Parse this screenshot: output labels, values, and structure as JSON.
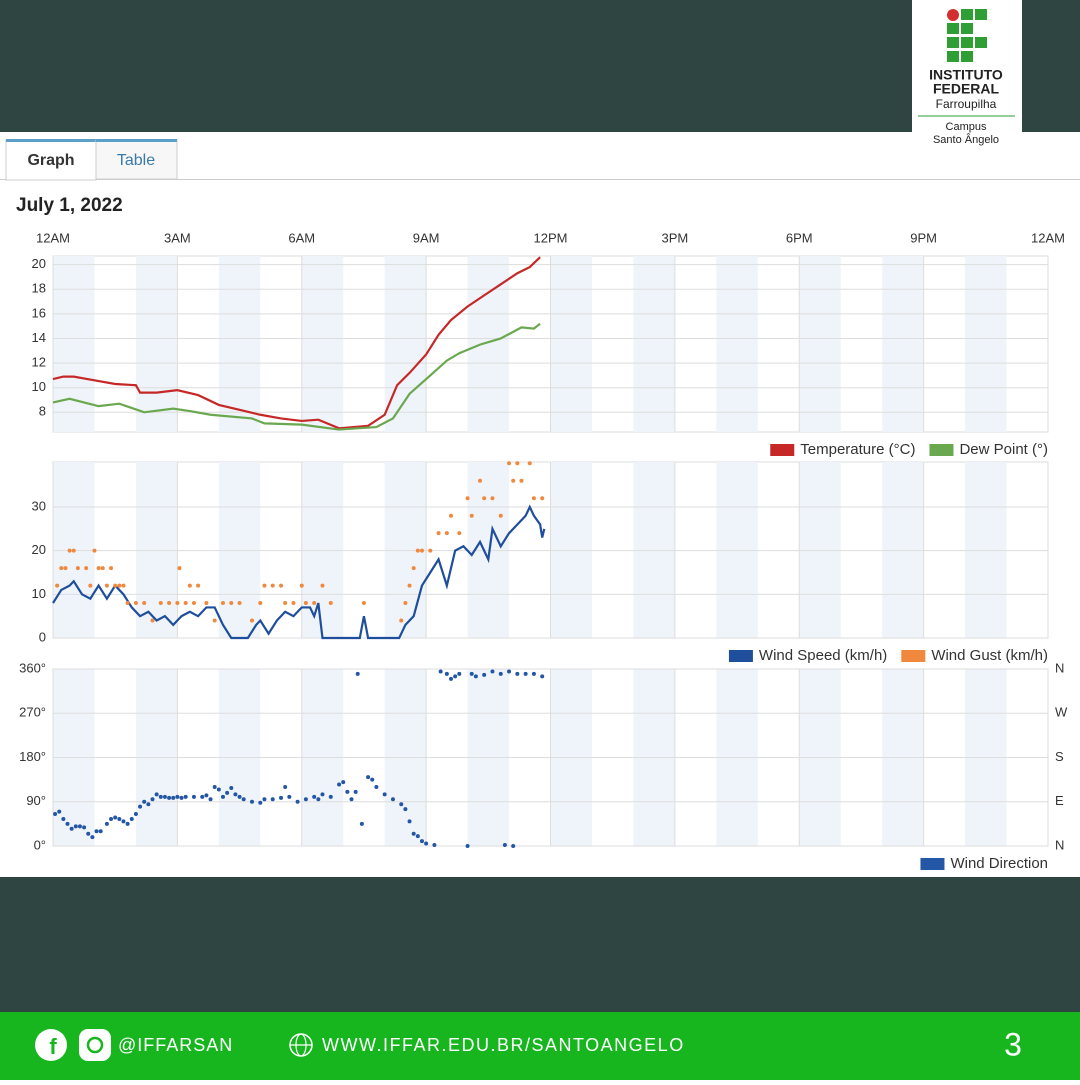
{
  "logo": {
    "line1": "INSTITUTO",
    "line2": "FEDERAL",
    "line3": "Farroupilha",
    "line4": "Campus",
    "line5": "Santo Ângelo"
  },
  "tabs": [
    "Graph",
    "Table"
  ],
  "date": "July 1, 2022",
  "chart_data": [
    {
      "type": "line",
      "xlim": [
        0,
        24
      ],
      "xticks": [
        {
          "value": 0,
          "label": "12AM"
        },
        {
          "value": 3,
          "label": "3AM"
        },
        {
          "value": 6,
          "label": "6AM"
        },
        {
          "value": 9,
          "label": "9AM"
        },
        {
          "value": 12,
          "label": "12PM"
        },
        {
          "value": 15,
          "label": "3PM"
        },
        {
          "value": 18,
          "label": "6PM"
        },
        {
          "value": 21,
          "label": "9PM"
        },
        {
          "value": 24,
          "label": "12AM"
        }
      ],
      "ylim": [
        6.4,
        20.7
      ],
      "yticks": [
        8,
        10,
        12,
        14,
        16,
        18,
        20
      ],
      "grid": true,
      "series": [
        {
          "name": "Temperature (°C)",
          "color": "#c62828",
          "x": [
            0,
            0.25,
            0.5,
            1,
            1.5,
            2,
            2.1,
            2.5,
            3,
            3.5,
            4,
            4.5,
            5,
            5.5,
            6,
            6.4,
            6.9,
            7.6,
            8,
            8.3,
            8.6,
            9,
            9.3,
            9.6,
            10,
            10.4,
            10.8,
            11.2,
            11.5,
            11.75
          ],
          "values": [
            10.7,
            10.9,
            10.9,
            10.6,
            10.3,
            10.2,
            9.6,
            9.6,
            9.8,
            9.4,
            8.6,
            8.2,
            7.8,
            7.5,
            7.3,
            7.4,
            6.7,
            6.9,
            7.8,
            10.2,
            11.2,
            12.7,
            14.3,
            15.5,
            16.6,
            17.5,
            18.4,
            19.3,
            19.8,
            20.6
          ]
        },
        {
          "name": "Dew Point (°)",
          "color": "#6aa84f",
          "x": [
            0,
            0.4,
            1.1,
            1.6,
            2.2,
            2.9,
            3.3,
            3.8,
            4.8,
            5.1,
            6,
            6.9,
            7.8,
            8.2,
            8.6,
            9.1,
            9.5,
            9.8,
            10.3,
            10.8,
            11.3,
            11.6,
            11.75
          ],
          "values": [
            8.8,
            9.1,
            8.5,
            8.7,
            8.0,
            8.3,
            8.1,
            7.8,
            7.5,
            7.1,
            7.0,
            6.6,
            6.8,
            7.5,
            9.5,
            11.0,
            12.2,
            12.8,
            13.5,
            14.0,
            14.9,
            14.8,
            15.2
          ]
        }
      ]
    },
    {
      "type": "line",
      "xlim": [
        0,
        24
      ],
      "ylim": [
        0,
        40.3
      ],
      "yticks": [
        0,
        10,
        20,
        30
      ],
      "grid": true,
      "series": [
        {
          "name": "Wind Speed (km/h)",
          "color": "#1f4e9c",
          "x": [
            0,
            0.2,
            0.4,
            0.5,
            0.7,
            0.9,
            1.1,
            1.3,
            1.5,
            1.7,
            1.9,
            2.1,
            2.3,
            2.5,
            2.7,
            2.9,
            3.1,
            3.3,
            3.5,
            3.7,
            3.9,
            4.1,
            4.3,
            4.7,
            4.9,
            5.0,
            5.2,
            5.4,
            5.6,
            5.8,
            6.0,
            6.2,
            6.3,
            6.4,
            6.5,
            7.4,
            7.5,
            7.6,
            8.35,
            8.5,
            8.7,
            8.9,
            9.1,
            9.3,
            9.5,
            9.7,
            9.9,
            10.1,
            10.3,
            10.5,
            10.6,
            10.8,
            11.0,
            11.2,
            11.4,
            11.5,
            11.6,
            11.75,
            11.8,
            11.85
          ],
          "values": [
            8,
            11,
            12,
            13,
            10,
            9,
            12,
            9,
            12,
            10,
            7,
            5,
            6,
            4,
            5,
            3,
            5,
            6,
            5,
            7,
            7,
            3,
            0,
            0,
            3,
            4,
            1,
            4,
            6,
            5,
            7,
            7,
            5,
            8,
            0,
            0,
            5,
            0,
            0,
            3,
            5,
            12,
            15,
            18,
            12,
            20,
            21,
            19,
            22,
            18,
            25,
            21,
            24,
            26,
            28,
            30,
            28,
            26,
            23,
            25
          ]
        },
        {
          "name": "Wind Gust (km/h)",
          "color": "#f0883e",
          "x": [
            0.1,
            0.2,
            0.3,
            0.4,
            0.5,
            0.6,
            0.8,
            0.9,
            1.0,
            1.1,
            1.2,
            1.3,
            1.4,
            1.5,
            1.6,
            1.7,
            1.8,
            2.0,
            2.2,
            2.4,
            2.6,
            2.8,
            3.0,
            3.05,
            3.2,
            3.3,
            3.4,
            3.5,
            3.7,
            3.9,
            4.1,
            4.3,
            4.5,
            4.8,
            5.0,
            5.1,
            5.3,
            5.5,
            5.6,
            5.8,
            6.0,
            6.1,
            6.3,
            6.5,
            6.7,
            7.5,
            8.4,
            8.5,
            8.6,
            8.7,
            8.8,
            8.9,
            9.1,
            9.3,
            9.5,
            9.6,
            9.8,
            10.0,
            10.1,
            10.3,
            10.4,
            10.6,
            10.8,
            11.0,
            11.1,
            11.2,
            11.3,
            11.5,
            11.6,
            11.8
          ],
          "values": [
            12,
            16,
            16,
            20,
            20,
            16,
            16,
            12,
            20,
            16,
            16,
            12,
            16,
            12,
            12,
            12,
            8,
            8,
            8,
            4,
            8,
            8,
            8,
            16,
            8,
            12,
            8,
            12,
            8,
            4,
            8,
            8,
            8,
            4,
            8,
            12,
            12,
            12,
            8,
            8,
            12,
            8,
            8,
            12,
            8,
            8,
            4,
            8,
            12,
            16,
            20,
            20,
            20,
            24,
            24,
            28,
            24,
            32,
            28,
            36,
            32,
            32,
            28,
            40,
            36,
            40,
            36,
            40,
            32,
            32
          ]
        }
      ]
    },
    {
      "type": "scatter",
      "xlim": [
        0,
        24
      ],
      "ylim": [
        0,
        360
      ],
      "yticks": [
        {
          "value": 0,
          "label": "0°"
        },
        {
          "value": 90,
          "label": "90°"
        },
        {
          "value": 180,
          "label": "180°"
        },
        {
          "value": 270,
          "label": "270°"
        },
        {
          "value": 360,
          "label": "360°"
        }
      ],
      "y2lim": [
        0,
        360
      ],
      "y2ticks": [
        {
          "value": 0,
          "label": "N"
        },
        {
          "value": 90,
          "label": "E"
        },
        {
          "value": 180,
          "label": "S"
        },
        {
          "value": 270,
          "label": "W"
        },
        {
          "value": 360,
          "label": "N"
        }
      ],
      "grid": true,
      "series": [
        {
          "name": "Wind Direction",
          "color": "#2456a6",
          "x": [
            0.05,
            0.15,
            0.25,
            0.35,
            0.45,
            0.55,
            0.65,
            0.75,
            0.85,
            0.95,
            1.05,
            1.15,
            1.3,
            1.4,
            1.5,
            1.6,
            1.7,
            1.8,
            1.9,
            2.0,
            2.1,
            2.2,
            2.3,
            2.4,
            2.5,
            2.6,
            2.7,
            2.8,
            2.9,
            3.0,
            3.1,
            3.2,
            3.4,
            3.6,
            3.7,
            3.8,
            3.9,
            4.0,
            4.1,
            4.2,
            4.3,
            4.4,
            4.5,
            4.6,
            4.8,
            5.0,
            5.1,
            5.3,
            5.5,
            5.6,
            5.7,
            5.9,
            6.1,
            6.3,
            6.4,
            6.5,
            6.7,
            6.9,
            7.0,
            7.1,
            7.2,
            7.3,
            7.35,
            7.45,
            7.6,
            7.7,
            7.8,
            8.0,
            8.2,
            8.4,
            8.5,
            8.6,
            8.7,
            8.8,
            8.9,
            9.0,
            9.2,
            9.35,
            9.5,
            9.6,
            9.7,
            9.8,
            10.0,
            10.1,
            10.2,
            10.4,
            10.6,
            10.8,
            10.9,
            11.0,
            11.1,
            11.2,
            11.4,
            11.6,
            11.8
          ],
          "values": [
            65,
            70,
            55,
            45,
            35,
            40,
            40,
            38,
            25,
            18,
            30,
            30,
            45,
            55,
            58,
            55,
            50,
            45,
            55,
            65,
            80,
            90,
            85,
            95,
            105,
            100,
            100,
            98,
            98,
            100,
            98,
            100,
            100,
            100,
            103,
            95,
            120,
            115,
            100,
            108,
            118,
            105,
            100,
            95,
            90,
            88,
            95,
            95,
            98,
            120,
            100,
            90,
            95,
            100,
            95,
            105,
            100,
            125,
            130,
            110,
            95,
            110,
            350,
            45,
            140,
            135,
            120,
            105,
            95,
            85,
            75,
            50,
            25,
            20,
            10,
            5,
            2,
            355,
            350,
            340,
            345,
            350,
            0,
            350,
            345,
            348,
            355,
            350,
            2,
            355,
            0,
            350,
            350,
            350,
            345
          ]
        }
      ]
    }
  ],
  "footer": {
    "handle": "@IFFARSAN",
    "site": "WWW.IFFAR.EDU.BR/SANTOANGELO",
    "page": "3"
  }
}
